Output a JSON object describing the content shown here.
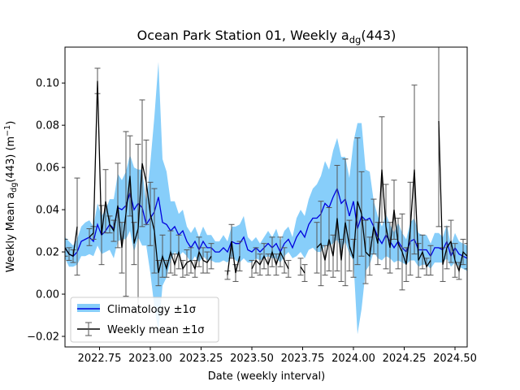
{
  "chart_data": {
    "type": "line",
    "title_main": "Ocean Park Station 01, Weekly a",
    "title_sub": "dg",
    "title_tail": "(443)",
    "xlabel": "Date (weekly interval)",
    "ylabel_main": "Weekly Mean a",
    "ylabel_sub": "dg",
    "ylabel_mid": "(443) (m",
    "ylabel_sup": "−1",
    "ylabel_tail": ")",
    "xlim": [
      2022.58,
      2024.56
    ],
    "ylim": [
      -0.025,
      0.117
    ],
    "xticks": [
      2022.75,
      2023.0,
      2023.25,
      2023.5,
      2023.75,
      2024.0,
      2024.25,
      2024.5
    ],
    "xtick_labels": [
      "2022.75",
      "2023.00",
      "2023.25",
      "2023.50",
      "2023.75",
      "2024.00",
      "2024.25",
      "2024.50"
    ],
    "yticks": [
      -0.02,
      0.0,
      0.02,
      0.04,
      0.06,
      0.08,
      0.1
    ],
    "ytick_labels": [
      "−0.02",
      "0.00",
      "0.02",
      "0.04",
      "0.06",
      "0.08",
      "0.10"
    ],
    "grid": false,
    "legend_position": "lower-left",
    "series": [
      {
        "name": "Climatology ±1σ",
        "color": "#0000dd",
        "band_color": "#87cefa",
        "x": [
          2022.58,
          2022.6,
          2022.62,
          2022.64,
          2022.66,
          2022.68,
          2022.7,
          2022.72,
          2022.74,
          2022.76,
          2022.78,
          2022.8,
          2022.82,
          2022.84,
          2022.86,
          2022.88,
          2022.9,
          2022.92,
          2022.94,
          2022.96,
          2022.98,
          2023.0,
          2023.02,
          2023.04,
          2023.06,
          2023.08,
          2023.1,
          2023.12,
          2023.14,
          2023.16,
          2023.18,
          2023.2,
          2023.22,
          2023.24,
          2023.26,
          2023.28,
          2023.3,
          2023.32,
          2023.34,
          2023.36,
          2023.38,
          2023.4,
          2023.42,
          2023.44,
          2023.46,
          2023.48,
          2023.5,
          2023.52,
          2023.54,
          2023.56,
          2023.58,
          2023.6,
          2023.62,
          2023.64,
          2023.66,
          2023.68,
          2023.7,
          2023.72,
          2023.74,
          2023.76,
          2023.78,
          2023.8,
          2023.82,
          2023.84,
          2023.86,
          2023.88,
          2023.9,
          2023.92,
          2023.94,
          2023.96,
          2023.98,
          2024.0,
          2024.02,
          2024.04,
          2024.06,
          2024.08,
          2024.1,
          2024.12,
          2024.14,
          2024.16,
          2024.18,
          2024.2,
          2024.22,
          2024.24,
          2024.26,
          2024.28,
          2024.3,
          2024.32,
          2024.34,
          2024.36,
          2024.38,
          2024.4,
          2024.42,
          2024.44,
          2024.46,
          2024.48,
          2024.5,
          2024.52,
          2024.54,
          2024.56
        ],
        "mean": [
          0.022,
          0.019,
          0.018,
          0.02,
          0.025,
          0.026,
          0.027,
          0.025,
          0.033,
          0.028,
          0.03,
          0.033,
          0.031,
          0.041,
          0.04,
          0.042,
          0.048,
          0.04,
          0.043,
          0.041,
          0.033,
          0.036,
          0.039,
          0.046,
          0.034,
          0.033,
          0.03,
          0.032,
          0.028,
          0.03,
          0.025,
          0.022,
          0.025,
          0.021,
          0.025,
          0.022,
          0.022,
          0.02,
          0.02,
          0.022,
          0.02,
          0.025,
          0.024,
          0.024,
          0.027,
          0.021,
          0.02,
          0.022,
          0.02,
          0.022,
          0.024,
          0.022,
          0.024,
          0.02,
          0.024,
          0.026,
          0.022,
          0.027,
          0.03,
          0.027,
          0.033,
          0.036,
          0.036,
          0.038,
          0.043,
          0.041,
          0.046,
          0.05,
          0.043,
          0.045,
          0.037,
          0.044,
          0.031,
          0.037,
          0.035,
          0.036,
          0.032,
          0.027,
          0.024,
          0.028,
          0.025,
          0.022,
          0.025,
          0.022,
          0.02,
          0.025,
          0.026,
          0.021,
          0.021,
          0.021,
          0.018,
          0.022,
          0.022,
          0.021,
          0.025,
          0.018,
          0.022,
          0.019,
          0.018,
          0.017
        ],
        "sd": [
          0.005,
          0.006,
          0.005,
          0.006,
          0.007,
          0.008,
          0.008,
          0.007,
          0.01,
          0.009,
          0.01,
          0.012,
          0.014,
          0.016,
          0.014,
          0.016,
          0.018,
          0.02,
          0.016,
          0.018,
          0.01,
          0.026,
          0.045,
          0.064,
          0.03,
          0.025,
          0.014,
          0.012,
          0.01,
          0.01,
          0.007,
          0.007,
          0.007,
          0.006,
          0.007,
          0.006,
          0.006,
          0.005,
          0.005,
          0.006,
          0.005,
          0.007,
          0.008,
          0.009,
          0.01,
          0.006,
          0.005,
          0.005,
          0.004,
          0.005,
          0.006,
          0.005,
          0.007,
          0.005,
          0.006,
          0.006,
          0.005,
          0.009,
          0.01,
          0.01,
          0.012,
          0.014,
          0.016,
          0.018,
          0.02,
          0.018,
          0.022,
          0.024,
          0.022,
          0.02,
          0.018,
          0.028,
          0.05,
          0.044,
          0.024,
          0.022,
          0.012,
          0.01,
          0.008,
          0.01,
          0.008,
          0.007,
          0.009,
          0.007,
          0.006,
          0.009,
          0.01,
          0.008,
          0.007,
          0.007,
          0.006,
          0.007,
          0.007,
          0.006,
          0.008,
          0.005,
          0.007,
          0.006,
          0.006,
          0.006
        ]
      },
      {
        "name": "Weekly mean ±1σ",
        "color": "#000000",
        "errbar_color": "#555555",
        "x": [
          2022.58,
          2022.6,
          2022.62,
          2022.64,
          2022.66,
          2022.68,
          2022.7,
          2022.72,
          2022.74,
          2022.76,
          2022.78,
          2022.8,
          2022.82,
          2022.84,
          2022.86,
          2022.88,
          2022.9,
          2022.92,
          2022.94,
          2022.96,
          2022.98,
          2023.0,
          2023.02,
          2023.04,
          2023.06,
          2023.08,
          2023.1,
          2023.12,
          2023.14,
          2023.16,
          2023.18,
          2023.2,
          2023.22,
          2023.24,
          2023.26,
          2023.28,
          2023.3,
          2023.32,
          2023.34,
          2023.36,
          2023.38,
          2023.4,
          2023.42,
          2023.44,
          2023.46,
          2023.48,
          2023.5,
          2023.52,
          2023.54,
          2023.56,
          2023.58,
          2023.6,
          2023.62,
          2023.64,
          2023.66,
          2023.68,
          2023.7,
          2023.72,
          2023.74,
          2023.76,
          2023.78,
          2023.8,
          2023.82,
          2023.84,
          2023.86,
          2023.88,
          2023.9,
          2023.92,
          2023.94,
          2023.96,
          2023.98,
          2024.0,
          2024.02,
          2024.04,
          2024.06,
          2024.08,
          2024.1,
          2024.12,
          2024.14,
          2024.16,
          2024.18,
          2024.2,
          2024.22,
          2024.24,
          2024.26,
          2024.28,
          2024.3,
          2024.32,
          2024.34,
          2024.36,
          2024.38,
          2024.4,
          2024.42,
          2024.44,
          2024.46,
          2024.48,
          2024.5,
          2024.52,
          2024.54,
          2024.56
        ],
        "values": [
          0.022,
          0.019,
          0.018,
          0.032,
          null,
          null,
          0.027,
          0.029,
          0.101,
          0.028,
          0.044,
          0.033,
          0.03,
          0.042,
          0.022,
          0.038,
          0.056,
          0.024,
          0.031,
          0.062,
          0.053,
          0.038,
          0.03,
          0.01,
          0.018,
          0.012,
          0.02,
          0.014,
          0.02,
          0.012,
          0.015,
          0.016,
          0.012,
          0.02,
          0.016,
          0.015,
          0.018,
          null,
          null,
          null,
          0.009,
          0.025,
          0.01,
          0.018,
          null,
          null,
          0.012,
          0.016,
          0.014,
          0.018,
          0.014,
          0.02,
          0.014,
          0.02,
          0.016,
          0.012,
          null,
          null,
          0.013,
          0.01,
          null,
          null,
          0.022,
          0.024,
          0.016,
          0.026,
          0.018,
          0.036,
          0.016,
          0.034,
          0.023,
          0.017,
          0.044,
          0.038,
          0.02,
          0.018,
          0.032,
          0.024,
          0.059,
          0.032,
          0.022,
          0.04,
          0.024,
          0.02,
          0.014,
          0.031,
          0.059,
          0.016,
          0.02,
          0.013,
          0.016,
          null,
          0.082,
          0.014,
          0.022,
          0.025,
          0.016,
          0.011,
          0.02,
          0.018
        ],
        "errors": [
          0.004,
          0.003,
          0.003,
          0.023,
          null,
          null,
          0.004,
          0.003,
          0.006,
          0.014,
          0.015,
          0.004,
          0.005,
          0.02,
          0.012,
          0.039,
          0.019,
          0.01,
          0.04,
          0.03,
          0.02,
          0.015,
          0.02,
          0.006,
          0.01,
          0.004,
          0.01,
          0.005,
          0.008,
          0.004,
          0.006,
          0.006,
          0.004,
          0.007,
          0.006,
          0.005,
          0.006,
          null,
          null,
          null,
          0.002,
          0.008,
          0.004,
          0.007,
          null,
          null,
          0.004,
          0.006,
          0.005,
          0.006,
          0.005,
          0.007,
          0.005,
          0.007,
          0.006,
          0.004,
          null,
          null,
          0.004,
          0.004,
          null,
          null,
          0.012,
          0.02,
          0.007,
          0.015,
          0.01,
          0.025,
          0.01,
          0.03,
          0.012,
          0.009,
          0.03,
          0.02,
          0.015,
          0.009,
          0.013,
          0.01,
          0.025,
          0.02,
          0.012,
          0.014,
          0.012,
          0.018,
          0.008,
          0.022,
          0.04,
          0.008,
          0.008,
          0.004,
          0.007,
          null,
          0.05,
          0.008,
          0.01,
          0.01,
          0.008,
          0.004,
          0.006,
          0.006
        ]
      }
    ]
  }
}
